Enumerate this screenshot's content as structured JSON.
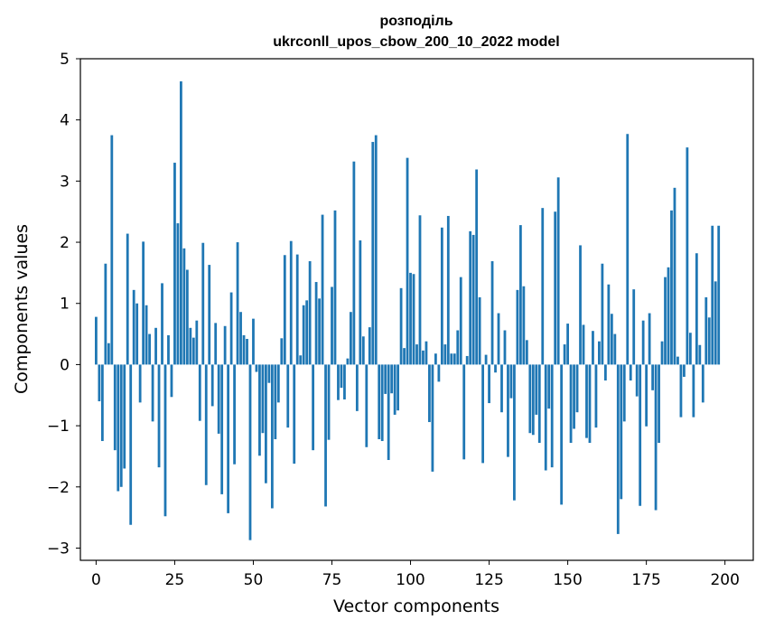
{
  "chart_data": {
    "type": "bar",
    "title": "розподіль",
    "subtitle": "ukrconll_upos_cbow_200_10_2022 model",
    "xlabel": "Vector components",
    "ylabel": "Components values",
    "xlim": [
      -5,
      209
    ],
    "ylim": [
      -3.2,
      5
    ],
    "xticks": [
      0,
      25,
      50,
      75,
      100,
      125,
      150,
      175,
      200
    ],
    "yticks": [
      -3,
      -2,
      -1,
      0,
      1,
      2,
      3,
      4,
      5
    ],
    "xtick_labels": [
      "0",
      "25",
      "50",
      "75",
      "100",
      "125",
      "150",
      "175",
      "200"
    ],
    "ytick_labels": [
      "−3",
      "−2",
      "−1",
      "0",
      "1",
      "2",
      "3",
      "4",
      "5"
    ],
    "bar_color": "#1f77b4",
    "grid": false,
    "legend": "none",
    "values": [
      0.78,
      -0.6,
      -1.25,
      1.65,
      0.35,
      3.75,
      -1.4,
      -2.07,
      -2.0,
      -1.7,
      2.14,
      -2.62,
      1.22,
      1.0,
      -0.62,
      2.01,
      0.97,
      0.5,
      -0.93,
      0.6,
      -1.68,
      1.33,
      -2.48,
      0.48,
      -0.53,
      3.3,
      2.31,
      4.63,
      1.9,
      1.55,
      0.6,
      0.44,
      0.72,
      -0.92,
      1.99,
      -1.97,
      1.63,
      -0.68,
      0.68,
      -1.13,
      -2.12,
      0.63,
      -2.43,
      1.18,
      -1.63,
      2.0,
      0.86,
      0.48,
      0.42,
      -2.87,
      0.75,
      -0.12,
      -1.49,
      -1.12,
      -1.94,
      -0.3,
      -2.35,
      -1.22,
      -0.62,
      0.43,
      1.79,
      -1.03,
      2.02,
      -1.62,
      1.8,
      0.15,
      0.97,
      1.05,
      1.69,
      -1.4,
      1.35,
      1.08,
      2.45,
      -2.32,
      -1.23,
      1.27,
      2.52,
      -0.58,
      -0.38,
      -0.57,
      0.1,
      0.86,
      3.32,
      -0.76,
      2.03,
      0.46,
      -1.35,
      0.61,
      3.64,
      3.75,
      -1.22,
      -1.25,
      -0.48,
      -1.56,
      -0.47,
      -0.82,
      -0.75,
      1.25,
      0.27,
      3.38,
      1.5,
      1.48,
      0.33,
      2.44,
      0.23,
      0.38,
      -0.94,
      -1.75,
      0.18,
      -0.28,
      2.24,
      0.33,
      2.43,
      0.18,
      0.18,
      0.56,
      1.43,
      -1.55,
      0.14,
      2.18,
      2.12,
      3.19,
      1.1,
      -1.61,
      0.16,
      -0.63,
      1.69,
      -0.13,
      0.84,
      -0.78,
      0.56,
      -1.51,
      -0.55,
      -2.22,
      1.22,
      2.28,
      1.28,
      0.4,
      -1.12,
      -1.15,
      -0.82,
      -1.28,
      2.56,
      -1.73,
      -0.72,
      -1.68,
      2.5,
      3.06,
      -2.29,
      0.33,
      0.67,
      -1.28,
      -1.05,
      -0.78,
      1.95,
      0.65,
      -1.2,
      -1.28,
      0.55,
      -1.03,
      0.38,
      1.65,
      -0.26,
      1.31,
      0.83,
      0.5,
      -2.77,
      -2.2,
      -0.93,
      3.77,
      -0.26,
      1.23,
      -0.52,
      -2.31,
      0.72,
      -1.01,
      0.84,
      -0.42,
      -2.38,
      -1.28,
      0.38,
      1.43,
      1.59,
      2.52,
      2.89,
      0.13,
      -0.86,
      -0.2,
      3.55,
      0.52,
      -0.86,
      1.82,
      0.32,
      -0.62,
      1.1,
      0.77,
      2.27,
      1.36,
      2.27
    ]
  }
}
